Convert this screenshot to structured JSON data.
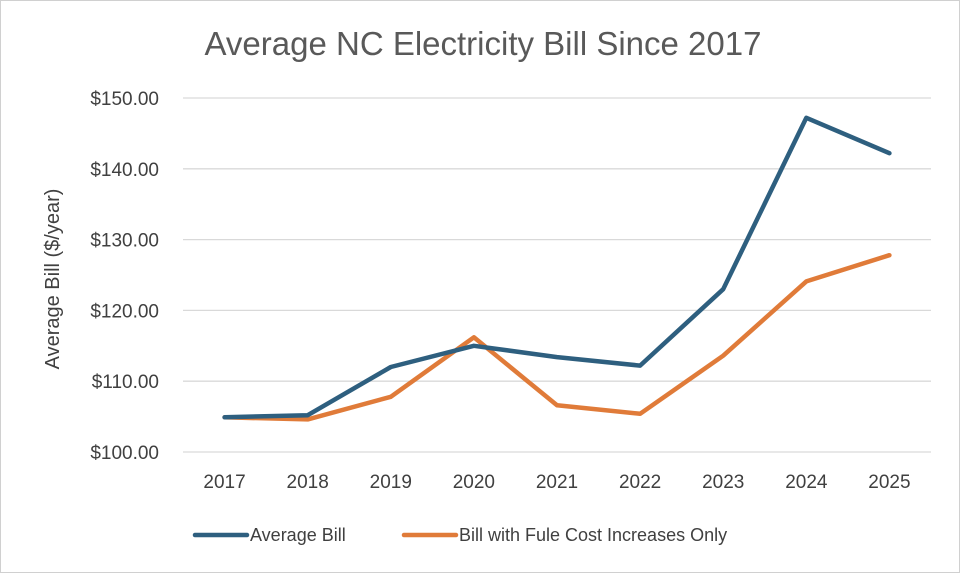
{
  "chart_data": {
    "type": "line",
    "title": "Average NC Electricity Bill Since 2017",
    "xlabel": "",
    "ylabel": "Average Bill ($/year)",
    "categories": [
      "2017",
      "2018",
      "2019",
      "2020",
      "2021",
      "2022",
      "2023",
      "2024",
      "2025"
    ],
    "ylim": [
      100,
      150
    ],
    "yticks": [
      100,
      110,
      120,
      130,
      140,
      150
    ],
    "ytick_labels": [
      "$100.00",
      "$110.00",
      "$120.00",
      "$130.00",
      "$140.00",
      "$150.00"
    ],
    "grid": true,
    "legend_position": "bottom",
    "series": [
      {
        "name": "Average Bill",
        "color": "#2E5F7F",
        "values": [
          104.9,
          105.2,
          112.0,
          115.0,
          113.4,
          112.2,
          123.0,
          147.2,
          142.2
        ]
      },
      {
        "name": "Bill with Fule Cost Increases Only",
        "color": "#E07B39",
        "values": [
          104.9,
          104.6,
          107.8,
          116.2,
          106.6,
          105.4,
          113.6,
          124.1,
          127.8
        ]
      }
    ]
  }
}
